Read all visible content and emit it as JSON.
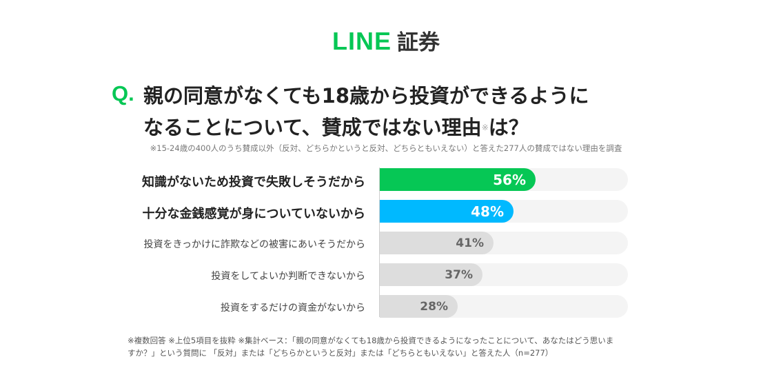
{
  "brand": {
    "logo_text": "LINE",
    "product": "証券",
    "accent": "#06c755"
  },
  "question": {
    "mark": "Q.",
    "line1": "親の同意がなくても18歳から投資ができるように",
    "line2_pre": "なることについて、賛成ではない理由",
    "line2_mark": "※",
    "line2_post": "は？"
  },
  "subnote": "※15-24歳の400人のうち賛成以外（反対、どちらかというと反対、どちらともいえない）と答えた277人の賛成ではない理由を調査",
  "chart_data": {
    "type": "bar",
    "orientation": "horizontal",
    "categories": [
      "知識がないため投資で失敗しそうだから",
      "十分な金銭感覚が身についていないから",
      "投資をきっかけに詐欺などの被害にあいそうだから",
      "投資をしてよいか判断できないから",
      "投資をするだけの資金がないから"
    ],
    "values": [
      56,
      48,
      41,
      37,
      28
    ],
    "value_labels": [
      "56%",
      "48%",
      "41%",
      "37%",
      "28%"
    ],
    "colors": [
      "#06c755",
      "#00b9ff",
      "#dddddd",
      "#dddddd",
      "#dddddd"
    ],
    "xlim": [
      0,
      100
    ],
    "unit": "%"
  },
  "footnote": {
    "line1": "※複数回答 ※上位5項目を抜粋 ※集計ベース：「親の同意がなくても18歳から投資できるようになったことについて、あなたはどう思いま",
    "line2": "すか？」という質問に 「反対」または「どちらかというと反対」または「どちらともいえない」と答えた人（n=277）"
  }
}
